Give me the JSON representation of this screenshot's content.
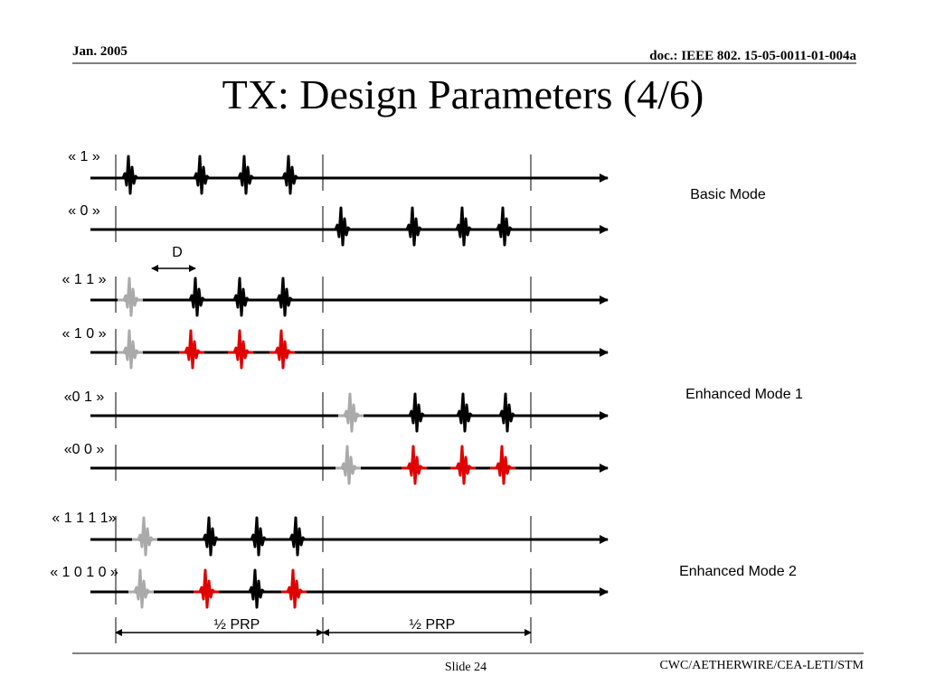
{
  "header": {
    "date": "Jan. 2005",
    "doc": "doc.: IEEE 802. 15-05-0011-01-004a"
  },
  "title": "TX: Design Parameters  (4/6)",
  "rows": [
    {
      "label": "« 1 »"
    },
    {
      "label": "« 0 »"
    },
    {
      "label": "« 1 1 »"
    },
    {
      "label": "« 1 0 »"
    },
    {
      "label": "«0 1 »"
    },
    {
      "label": "«0 0 »"
    },
    {
      "label": "« 1 1 1 1»"
    },
    {
      "label": "« 1 0 1 0 »"
    }
  ],
  "modes": [
    "Basic Mode",
    "Enhanced Mode 1",
    "Enhanced Mode 2"
  ],
  "d_label": "D",
  "prp_labels": [
    "½ PRP",
    "½ PRP"
  ],
  "footer": {
    "slide": "Slide 24",
    "org": "CWC/AETHERWIRE/CEA-LETI/STM"
  }
}
